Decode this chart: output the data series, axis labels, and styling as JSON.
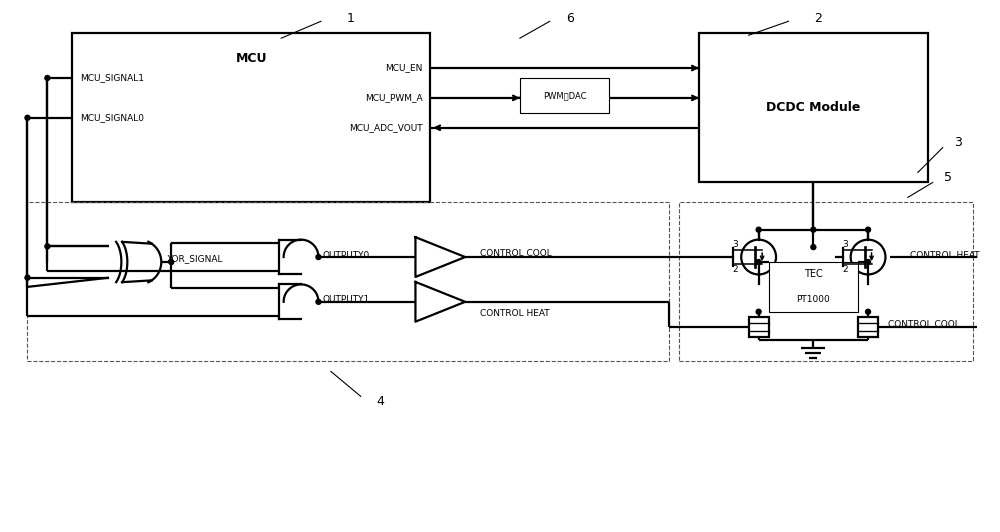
{
  "bg_color": "#ffffff",
  "line_color": "#000000",
  "fig_width": 10.0,
  "fig_height": 5.32,
  "labels": {
    "mcu": "MCU",
    "dcdc": "DCDC Module",
    "tec_line1": "TEC",
    "tec_line2": "PT1000",
    "pwm_dac": "PWM转DAC",
    "mcu_signal1": "MCU_SIGNAL1",
    "mcu_signal0": "MCU_SIGNAL0",
    "mcu_en": "MCU_EN",
    "mcu_pwm_a": "MCU_PWM_A",
    "mcu_adc_vout": "MCU_ADC_VOUT",
    "xor_signal": "XOR_SIGNAL",
    "outputy0": "OUTPUTY0",
    "outputy1": "OUTPUTY1",
    "control_cool": "CONTROL COOL",
    "control_heat": "CONTROL HEAT",
    "control_heat_b": "CONTROL HEAT",
    "control_cool_b": "CONTROL COOL",
    "n3a": "3",
    "n2a": "2",
    "n3b": "3",
    "n2b": "2",
    "label1": "1",
    "label2": "2",
    "label3": "3",
    "label4": "4",
    "label5": "5",
    "label6": "6"
  }
}
